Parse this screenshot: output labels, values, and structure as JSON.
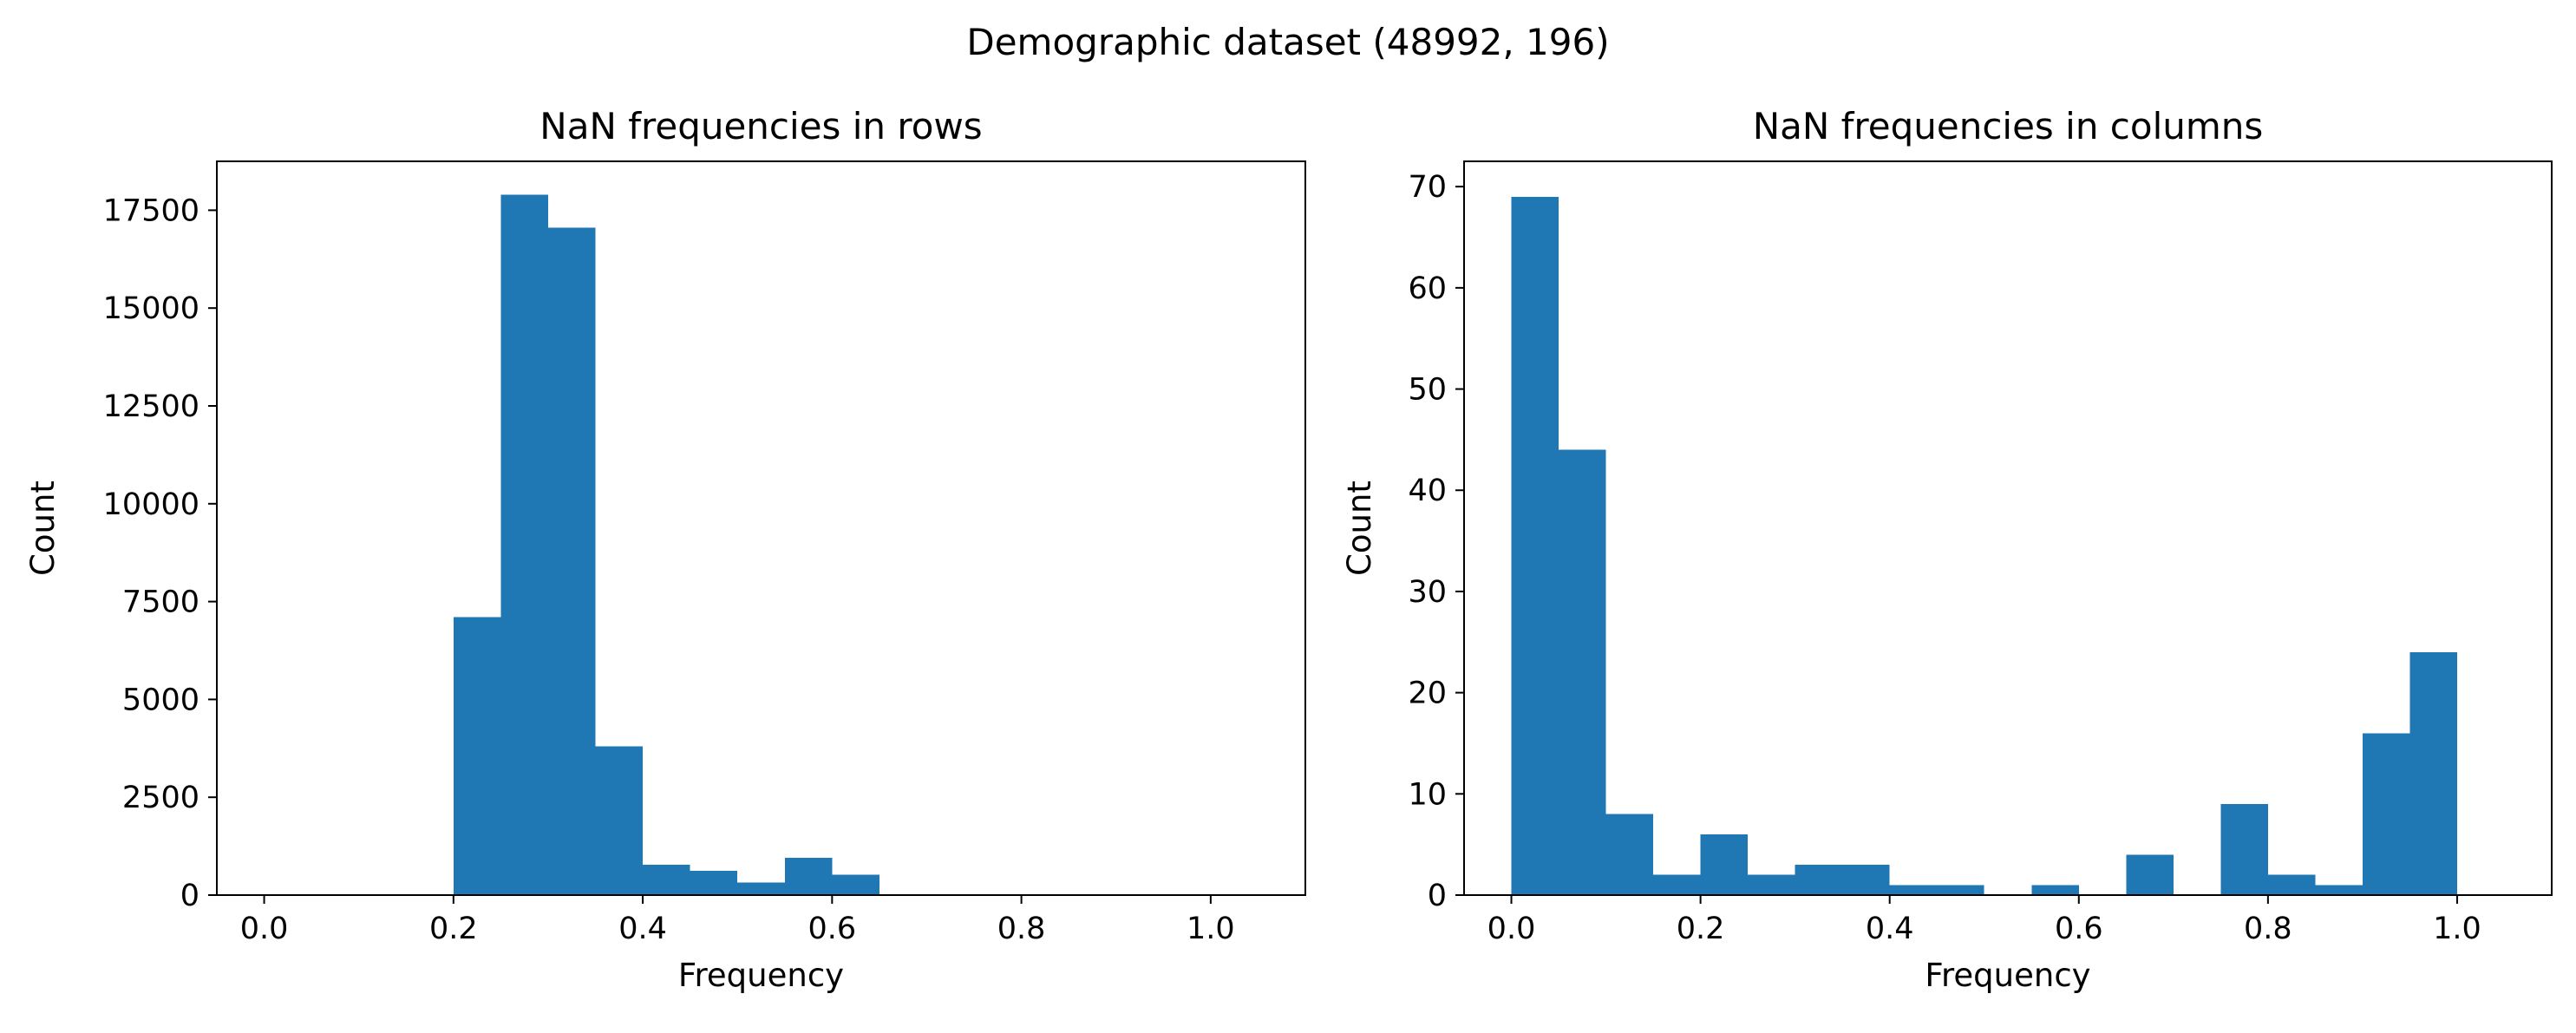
{
  "figure": {
    "suptitle": "Demographic dataset (48992, 196)"
  },
  "style": {
    "bar_color": "#1f77b4",
    "axes_color": "#000000",
    "background": "#ffffff"
  },
  "chart_data": [
    {
      "type": "bar",
      "title": "NaN frequencies in rows",
      "xlabel": "Frequency",
      "ylabel": "Count",
      "xlim": [
        -0.05,
        1.1
      ],
      "ylim": [
        0,
        18750
      ],
      "xticks": [
        0.0,
        0.2,
        0.4,
        0.6,
        0.8,
        1.0
      ],
      "xtick_labels": [
        "0.0",
        "0.2",
        "0.4",
        "0.6",
        "0.8",
        "1.0"
      ],
      "yticks": [
        0,
        2500,
        5000,
        7500,
        10000,
        12500,
        15000,
        17500
      ],
      "ytick_labels": [
        "0",
        "2500",
        "5000",
        "7500",
        "10000",
        "12500",
        "15000",
        "17500"
      ],
      "bin_edges": [
        0.0,
        0.05,
        0.1,
        0.15,
        0.2,
        0.25,
        0.3,
        0.35,
        0.4,
        0.45,
        0.5,
        0.55,
        0.6,
        0.65,
        0.7,
        0.75,
        0.8,
        0.85,
        0.9,
        0.95,
        1.0
      ],
      "values": [
        0,
        0,
        0,
        0,
        7100,
        17900,
        17050,
        3800,
        780,
        620,
        320,
        950,
        520,
        0,
        0,
        0,
        0,
        0,
        0,
        0
      ]
    },
    {
      "type": "bar",
      "title": "NaN frequencies in columns",
      "xlabel": "Frequency",
      "ylabel": "Count",
      "xlim": [
        -0.05,
        1.1
      ],
      "ylim": [
        0,
        72.5
      ],
      "xticks": [
        0.0,
        0.2,
        0.4,
        0.6,
        0.8,
        1.0
      ],
      "xtick_labels": [
        "0.0",
        "0.2",
        "0.4",
        "0.6",
        "0.8",
        "1.0"
      ],
      "yticks": [
        0,
        10,
        20,
        30,
        40,
        50,
        60,
        70
      ],
      "ytick_labels": [
        "0",
        "10",
        "20",
        "30",
        "40",
        "50",
        "60",
        "70"
      ],
      "bin_edges": [
        0.0,
        0.05,
        0.1,
        0.15,
        0.2,
        0.25,
        0.3,
        0.35,
        0.4,
        0.45,
        0.5,
        0.55,
        0.6,
        0.65,
        0.7,
        0.75,
        0.8,
        0.85,
        0.9,
        0.95,
        1.0
      ],
      "values": [
        69,
        44,
        8,
        2,
        6,
        2,
        3,
        3,
        1,
        1,
        0,
        1,
        0,
        4,
        0,
        9,
        2,
        1,
        16,
        24
      ]
    }
  ]
}
